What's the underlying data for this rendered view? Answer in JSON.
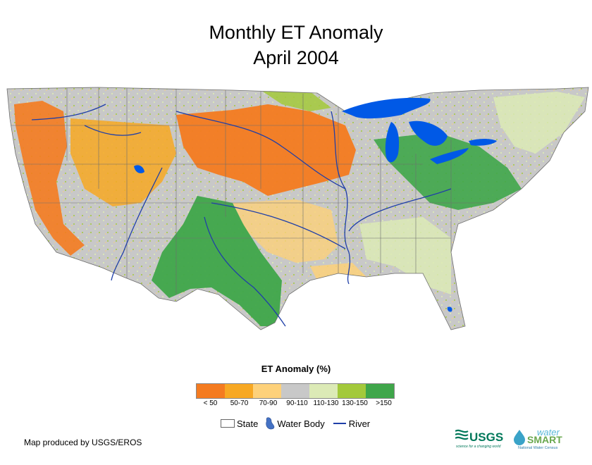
{
  "title": {
    "line1": "Monthly ET Anomaly",
    "line2": "April 2004"
  },
  "legend": {
    "title": "ET Anomaly (%)",
    "classes": [
      {
        "label": "< 50",
        "color": "#f47b20"
      },
      {
        "label": "50-70",
        "color": "#f7a823"
      },
      {
        "label": "70-90",
        "color": "#fdd17a"
      },
      {
        "label": "90-110",
        "color": "#c8c8c8"
      },
      {
        "label": "110-130",
        "color": "#dceab6"
      },
      {
        "label": "130-150",
        "color": "#a3c93b"
      },
      {
        "label": ">150",
        "color": "#3fa64a"
      }
    ]
  },
  "keys": {
    "state": "State",
    "water_body": "Water Body",
    "river": "River"
  },
  "credit": "Map produced by USGS/EROS",
  "logos": {
    "usgs": "USGS",
    "usgs_tagline": "science for a changing world",
    "water": "water",
    "smart": "SMART",
    "census": "National Water Census"
  },
  "colors": {
    "water": "#0059e6",
    "river": "#1f3fa8",
    "state_line": "#6e6e6e"
  }
}
